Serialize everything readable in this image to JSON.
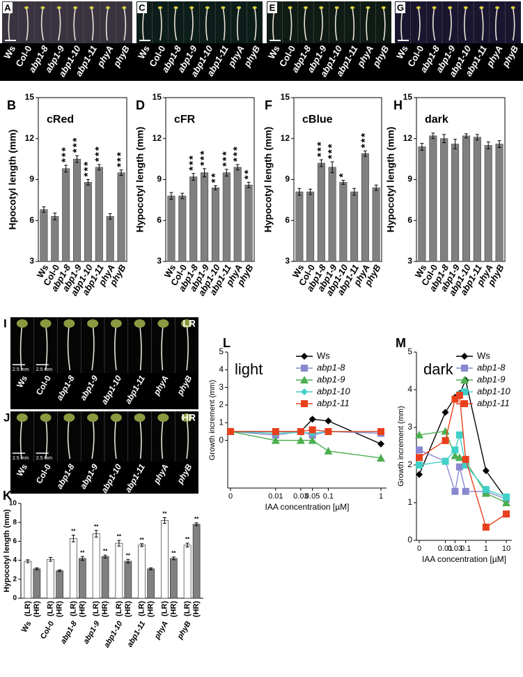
{
  "photo_panels": [
    {
      "panel": "A",
      "labels": [
        "Ws",
        "Col-0",
        "abp1-8",
        "abp1-9",
        "abp1-10",
        "abp1-11",
        "phyA",
        "phyB"
      ]
    },
    {
      "panel": "C",
      "labels": [
        "Ws",
        "Col-0",
        "abp1-8",
        "abp1-9",
        "abp1-10",
        "abp1-11",
        "phyA",
        "phyB"
      ]
    },
    {
      "panel": "E",
      "labels": [
        "Ws",
        "Col-0",
        "abp1-8",
        "abp1-9",
        "abp1-10",
        "abp1-11",
        "phyA",
        "phyB"
      ]
    },
    {
      "panel": "G",
      "labels": [
        "Ws",
        "Col-0",
        "abp1-8",
        "abp1-9",
        "abp1-10",
        "abp1-11",
        "phyA",
        "phyB"
      ]
    },
    {
      "panel": "I",
      "tag": "LR",
      "scale_labels": [
        "2.5 mm",
        "2.5 mm"
      ],
      "labels": [
        "Ws",
        "Col-0",
        "abp1-8",
        "abp1-9",
        "abp1-10",
        "abp1-11",
        "phyA",
        "phyB"
      ]
    },
    {
      "panel": "J",
      "tag": "HR",
      "scale_labels": [
        "2.5 mm",
        "2.5 mm"
      ],
      "labels": [
        "Ws",
        "Col-0",
        "abp1-8",
        "abp1-9",
        "abp1-10",
        "abp1-11",
        "phyA",
        "phyB"
      ]
    }
  ],
  "chart_data": [
    {
      "type": "bar",
      "panel": "B",
      "annotation": "cRed",
      "ylabel": "Hpocotyl length (mm)",
      "categories": [
        "Ws",
        "Col-0",
        "abp1-8",
        "abp1-9",
        "abp1-10",
        "abp1-11",
        "phyA",
        "phyB"
      ],
      "values": [
        6.8,
        6.3,
        9.8,
        10.5,
        8.8,
        9.9,
        6.3,
        9.5
      ],
      "errors": [
        0.2,
        0.25,
        0.25,
        0.25,
        0.2,
        0.2,
        0.2,
        0.2
      ],
      "significance": [
        null,
        null,
        "***",
        "***",
        "***",
        "***",
        null,
        "***"
      ],
      "color": "#808080",
      "ylim": [
        3,
        15
      ],
      "yticks": [
        3,
        6,
        9,
        12,
        15
      ]
    },
    {
      "type": "bar",
      "panel": "D",
      "annotation": "cFR",
      "ylabel": "Hypocotyl length (mm)",
      "categories": [
        "Ws",
        "Col-0",
        "abp1-8",
        "abp1-9",
        "abp1-10",
        "abp1-11",
        "phyA",
        "phyB"
      ],
      "values": [
        7.8,
        7.8,
        9.2,
        9.5,
        8.4,
        9.5,
        9.9,
        8.6
      ],
      "errors": [
        0.25,
        0.2,
        0.25,
        0.3,
        0.15,
        0.25,
        0.2,
        0.2
      ],
      "significance": [
        null,
        null,
        "***",
        "***",
        "**",
        "***",
        "***",
        "**"
      ],
      "color": "#808080",
      "ylim": [
        3,
        15
      ],
      "yticks": [
        3,
        6,
        9,
        12,
        15
      ]
    },
    {
      "type": "bar",
      "panel": "F",
      "annotation": "cBlue",
      "ylabel": "Hypocotyl length (mm)",
      "categories": [
        "Ws",
        "Col-0",
        "abp1-8",
        "abp1-9",
        "abp1-10",
        "abp1-11",
        "phyA",
        "phyB"
      ],
      "values": [
        8.1,
        8.1,
        10.2,
        9.9,
        8.8,
        8.1,
        10.9,
        8.4
      ],
      "errors": [
        0.25,
        0.2,
        0.25,
        0.4,
        0.15,
        0.25,
        0.2,
        0.2
      ],
      "significance": [
        null,
        null,
        "***",
        "***",
        "*",
        null,
        "***",
        null
      ],
      "color": "#808080",
      "ylim": [
        3,
        15
      ],
      "yticks": [
        3,
        6,
        9,
        12,
        15
      ]
    },
    {
      "type": "bar",
      "panel": "H",
      "annotation": "dark",
      "ylabel": "Hypocotyl length (mm)",
      "categories": [
        "Ws",
        "Col-0",
        "abp1-8",
        "abp1-9",
        "abp1-10",
        "abp1-11",
        "phyA",
        "phyB"
      ],
      "values": [
        11.4,
        12.2,
        12.0,
        11.6,
        12.2,
        12.1,
        11.5,
        11.6
      ],
      "errors": [
        0.25,
        0.2,
        0.3,
        0.35,
        0.15,
        0.2,
        0.25,
        0.25
      ],
      "significance": [
        null,
        null,
        null,
        null,
        null,
        null,
        null,
        null
      ],
      "color": "#808080",
      "ylim": [
        3,
        15
      ],
      "yticks": [
        3,
        6,
        9,
        12,
        15
      ]
    },
    {
      "type": "grouped_bar",
      "panel": "K",
      "ylabel": "Hypocotyl length (mm)",
      "categories": [
        "Ws",
        "Col-0",
        "abp1-8",
        "abp1-9",
        "abp1-10",
        "abp1-11",
        "phyA",
        "phyB"
      ],
      "series": [
        {
          "name": "(LR)",
          "color": "#ffffff",
          "values": [
            3.9,
            4.1,
            6.3,
            6.8,
            5.8,
            5.6,
            8.2,
            5.6
          ],
          "errors": [
            0.15,
            0.2,
            0.35,
            0.35,
            0.3,
            0.15,
            0.3,
            0.2
          ],
          "significance": [
            null,
            null,
            "**",
            "**",
            "**",
            "**",
            "**",
            "**"
          ]
        },
        {
          "name": "(HR)",
          "color": "#808080",
          "values": [
            3.1,
            2.9,
            4.2,
            4.4,
            3.9,
            3.1,
            4.2,
            7.8
          ],
          "errors": [
            0.1,
            0.1,
            0.2,
            0.15,
            0.2,
            0.1,
            0.15,
            0.15
          ],
          "significance": [
            null,
            null,
            "**",
            "**",
            "**",
            null,
            "**",
            "**"
          ]
        }
      ],
      "ylim": [
        0,
        10
      ],
      "yticks": [
        0,
        2,
        4,
        6,
        8,
        10
      ]
    },
    {
      "type": "line",
      "panel": "L",
      "annotation": "light",
      "xlabel": "IAA concentration [µM]",
      "ylabel": "Growth increment (mm)",
      "x": [
        0,
        0.01,
        0.03,
        0.05,
        0.1,
        1
      ],
      "series": [
        {
          "name": "Ws",
          "color": "#000000",
          "marker": "diamond",
          "values": [
            0.5,
            0.5,
            0.5,
            1.2,
            1.1,
            -0.2
          ]
        },
        {
          "name": "abp1-8",
          "color": "#8888d0",
          "marker": "square",
          "values": [
            0.5,
            0.3,
            0.5,
            0.3,
            0.5,
            0.4
          ]
        },
        {
          "name": "abp1-9",
          "color": "#4caf50",
          "marker": "triangle",
          "values": [
            0.5,
            0.0,
            0.0,
            0.0,
            -0.6,
            -1.0
          ]
        },
        {
          "name": "abp1-10",
          "color": "#40d0c8",
          "marker": "diamond",
          "values": [
            0.5,
            0.4,
            0.45,
            0.4,
            0.5,
            0.5
          ]
        },
        {
          "name": "abp1-11",
          "color": "#e8401c",
          "marker": "square",
          "values": [
            0.5,
            0.5,
            0.5,
            0.6,
            0.5,
            0.5
          ]
        }
      ],
      "xticks": [
        0,
        0.01,
        0.03,
        0.05,
        0.1,
        1
      ],
      "ylim": [
        -2.7,
        5
      ],
      "yticks": [
        0,
        1,
        2,
        3,
        4,
        5
      ],
      "legend": "upper right"
    },
    {
      "type": "line",
      "panel": "M",
      "annotation": "dark",
      "xlabel": "IAA concentration [µM]",
      "ylabel": "Growth increment (mm)",
      "x": [
        0,
        0.01,
        0.03,
        0.05,
        0.1,
        1,
        10
      ],
      "series": [
        {
          "name": "Ws",
          "color": "#000000",
          "marker": "diamond",
          "values": [
            1.75,
            3.4,
            3.8,
            3.9,
            4.25,
            1.85,
            1.1
          ]
        },
        {
          "name": "abp1-8",
          "color": "#8888d0",
          "marker": "square",
          "values": [
            2.4,
            2.1,
            1.3,
            1.95,
            1.3,
            1.3,
            1.1
          ]
        },
        {
          "name": "abp1-9",
          "color": "#4caf50",
          "marker": "triangle",
          "values": [
            2.8,
            2.9,
            2.25,
            2.2,
            2.1,
            1.25,
            1.0
          ]
        },
        {
          "name": "abp1-10",
          "color": "#40d0c8",
          "marker": "square",
          "values": [
            2.0,
            2.1,
            2.4,
            2.8,
            2.0,
            1.35,
            1.15
          ]
        },
        {
          "name": "abp1-11",
          "color": "#e8401c",
          "marker": "square",
          "values": [
            2.2,
            2.65,
            3.75,
            3.85,
            2.15,
            0.35,
            0.7
          ]
        }
      ],
      "xticks": [
        0,
        0.01,
        0.03,
        0.1,
        1,
        10
      ],
      "ylim": [
        0,
        5
      ],
      "yticks": [
        0,
        1,
        2,
        3,
        4,
        5
      ],
      "legend": "upper right"
    }
  ]
}
